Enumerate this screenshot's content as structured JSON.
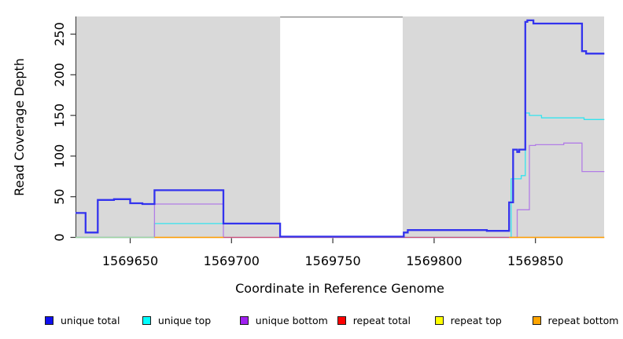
{
  "figure": {
    "background": "#ffffff",
    "plot_background": "#d9d9d9"
  },
  "x_axis": {
    "label": "Coordinate in Reference Genome",
    "ticks": [
      "1569650",
      "1569700",
      "1569750",
      "1569800",
      "1569850"
    ],
    "tick_values": [
      1569650,
      1569700,
      1569750,
      1569800,
      1569850
    ],
    "range": [
      1569623.4,
      1569883.9
    ]
  },
  "y_axis": {
    "label": "Read Coverage Depth",
    "ticks": [
      "0",
      "50",
      "100",
      "150",
      "200",
      "250"
    ],
    "tick_values": [
      0,
      50,
      100,
      150,
      200,
      250
    ],
    "range": [
      0,
      271.7
    ]
  },
  "chart_data": {
    "type": "line",
    "subtype": "step",
    "title": "",
    "xlabel": "Coordinate in Reference Genome",
    "ylabel": "Read Coverage Depth",
    "xlim": [
      1569623.4,
      1569883.9
    ],
    "ylim": [
      0,
      271.7
    ],
    "grid": "off",
    "legend_position": "bottom",
    "masked_region": {
      "x_start": 1569724,
      "x_end": 1569784.5,
      "fill": "#ffffff",
      "top_border_color": "#8c8c8c"
    },
    "series": [
      {
        "name": "unique top",
        "line_color": "#35e3ee",
        "line_width": 1.3,
        "segments": [
          [
            [
              1569623,
              0
            ],
            [
              1569662,
              17
            ],
            [
              1569724,
              0
            ],
            [
              1569838,
              72
            ],
            [
              1569843,
              76
            ],
            [
              1569845,
              153
            ],
            [
              1569847,
              150
            ],
            [
              1569853,
              147
            ],
            [
              1569874,
              145
            ],
            [
              1569884,
              145
            ]
          ]
        ]
      },
      {
        "name": "unique bottom",
        "line_color": "#b27de6",
        "line_width": 1.3,
        "segments": [
          [
            [
              1569623,
              0
            ],
            [
              1569662,
              41
            ],
            [
              1569696,
              0
            ],
            [
              1569841,
              34
            ],
            [
              1569847,
              113
            ],
            [
              1569850,
              114
            ],
            [
              1569864,
              116
            ],
            [
              1569873,
              81
            ],
            [
              1569884,
              81
            ]
          ]
        ]
      },
      {
        "name": "repeat top",
        "line_color": "#9fd49f",
        "line_width": 1.4,
        "segments": [
          [
            [
              1569623,
              0
            ],
            [
              1569662,
              0
            ]
          ]
        ]
      },
      {
        "name": "repeat total",
        "line_color": "#cc4f75",
        "line_width": 1.3,
        "segments": [
          [
            [
              1569696,
              0
            ],
            [
              1569837,
              0
            ]
          ]
        ]
      },
      {
        "name": "repeat bottom",
        "line_color": "#ff9d00",
        "line_width": 1.6,
        "segments": [
          [
            [
              1569662,
              0
            ],
            [
              1569696,
              0
            ]
          ],
          [
            [
              1569837,
              0
            ],
            [
              1569884,
              0
            ]
          ]
        ]
      },
      {
        "name": "unique total",
        "line_color": "#3333ee",
        "line_width": 2.3,
        "segments": [
          [
            [
              1569623,
              30
            ],
            [
              1569628,
              6
            ],
            [
              1569634,
              46
            ],
            [
              1569642,
              47
            ],
            [
              1569650,
              42
            ],
            [
              1569656,
              41
            ],
            [
              1569662,
              58
            ],
            [
              1569696,
              17
            ],
            [
              1569724,
              1
            ],
            [
              1569785,
              6
            ],
            [
              1569787,
              9
            ],
            [
              1569826,
              8
            ],
            [
              1569837,
              43
            ],
            [
              1569839,
              108
            ],
            [
              1569841,
              105
            ],
            [
              1569842,
              108
            ],
            [
              1569845,
              265
            ],
            [
              1569846,
              267
            ],
            [
              1569849,
              263
            ],
            [
              1569873,
              229
            ],
            [
              1569875,
              226
            ],
            [
              1569884,
              226
            ]
          ]
        ]
      }
    ]
  },
  "legend": {
    "items": [
      {
        "label": "unique total",
        "swatch_color": "#0f0fef"
      },
      {
        "label": "unique top",
        "swatch_color": "#00ffff"
      },
      {
        "label": "unique bottom",
        "swatch_color": "#a020f0"
      },
      {
        "label": "repeat total",
        "swatch_color": "#ff0000"
      },
      {
        "label": "repeat top",
        "swatch_color": "#ffff00"
      },
      {
        "label": "repeat bottom",
        "swatch_color": "#ffa500"
      }
    ]
  }
}
